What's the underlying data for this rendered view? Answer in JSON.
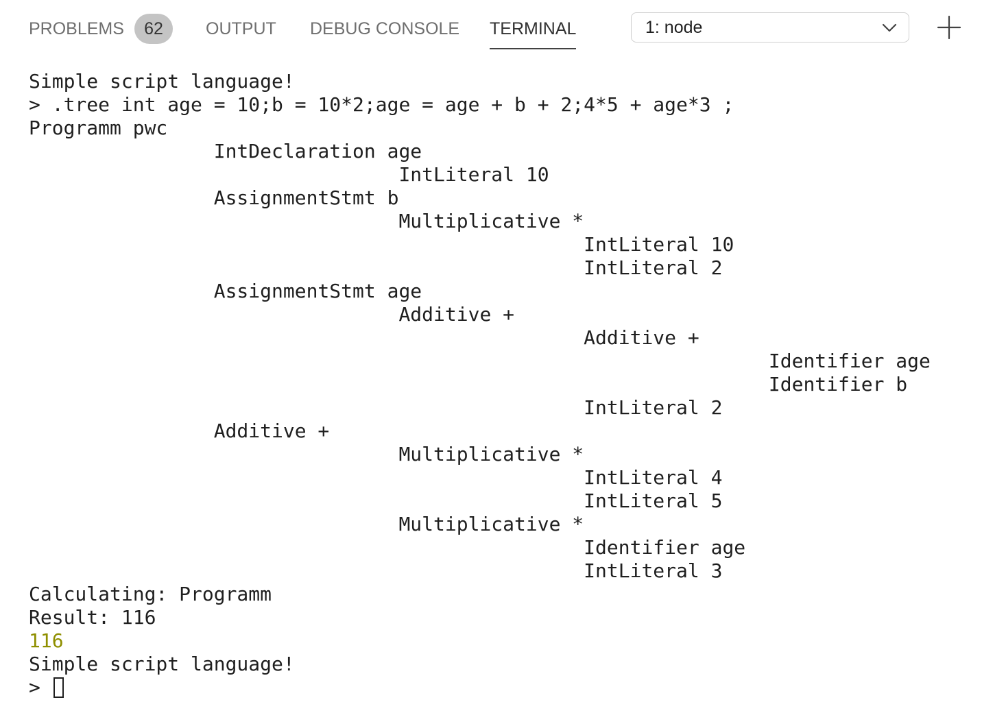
{
  "tabs": [
    {
      "label": "PROBLEMS",
      "badge": "62"
    },
    {
      "label": "OUTPUT"
    },
    {
      "label": "DEBUG CONSOLE"
    },
    {
      "label": "TERMINAL",
      "active": true
    }
  ],
  "terminal_select": {
    "value": "1: node",
    "icon": "chevron-down-icon"
  },
  "new_terminal_icon": "plus-icon",
  "terminal": {
    "lines": [
      {
        "indent": 0,
        "text": "Simple script language!"
      },
      {
        "indent": 0,
        "text": "> .tree int age = 10;b = 10*2;age = age + b + 2;4*5 + age*3 ;"
      },
      {
        "indent": 0,
        "text": "Programm pwc"
      },
      {
        "indent": 1,
        "text": "IntDeclaration age"
      },
      {
        "indent": 2,
        "text": "IntLiteral 10"
      },
      {
        "indent": 1,
        "text": "AssignmentStmt b"
      },
      {
        "indent": 2,
        "text": "Multiplicative *"
      },
      {
        "indent": 3,
        "text": "IntLiteral 10"
      },
      {
        "indent": 3,
        "text": "IntLiteral 2"
      },
      {
        "indent": 1,
        "text": "AssignmentStmt age"
      },
      {
        "indent": 2,
        "text": "Additive +"
      },
      {
        "indent": 3,
        "text": "Additive +"
      },
      {
        "indent": 4,
        "text": "Identifier age"
      },
      {
        "indent": 4,
        "text": "Identifier b"
      },
      {
        "indent": 3,
        "text": "IntLiteral 2"
      },
      {
        "indent": 1,
        "text": "Additive +"
      },
      {
        "indent": 2,
        "text": "Multiplicative *"
      },
      {
        "indent": 3,
        "text": "IntLiteral 4"
      },
      {
        "indent": 3,
        "text": "IntLiteral 5"
      },
      {
        "indent": 2,
        "text": "Multiplicative *"
      },
      {
        "indent": 3,
        "text": "Identifier age"
      },
      {
        "indent": 3,
        "text": "IntLiteral 3"
      },
      {
        "indent": 0,
        "text": "Calculating: Programm"
      },
      {
        "indent": 0,
        "text": "Result: 116"
      },
      {
        "indent": 0,
        "text": "116",
        "color": "#8f8f00"
      },
      {
        "indent": 0,
        "text": "Simple script language!"
      }
    ],
    "prompt": "> "
  },
  "colors": {
    "active_tab_underline": "#424242",
    "badge_background": "#c4c4c4",
    "result_highlight": "#8f8f00"
  }
}
